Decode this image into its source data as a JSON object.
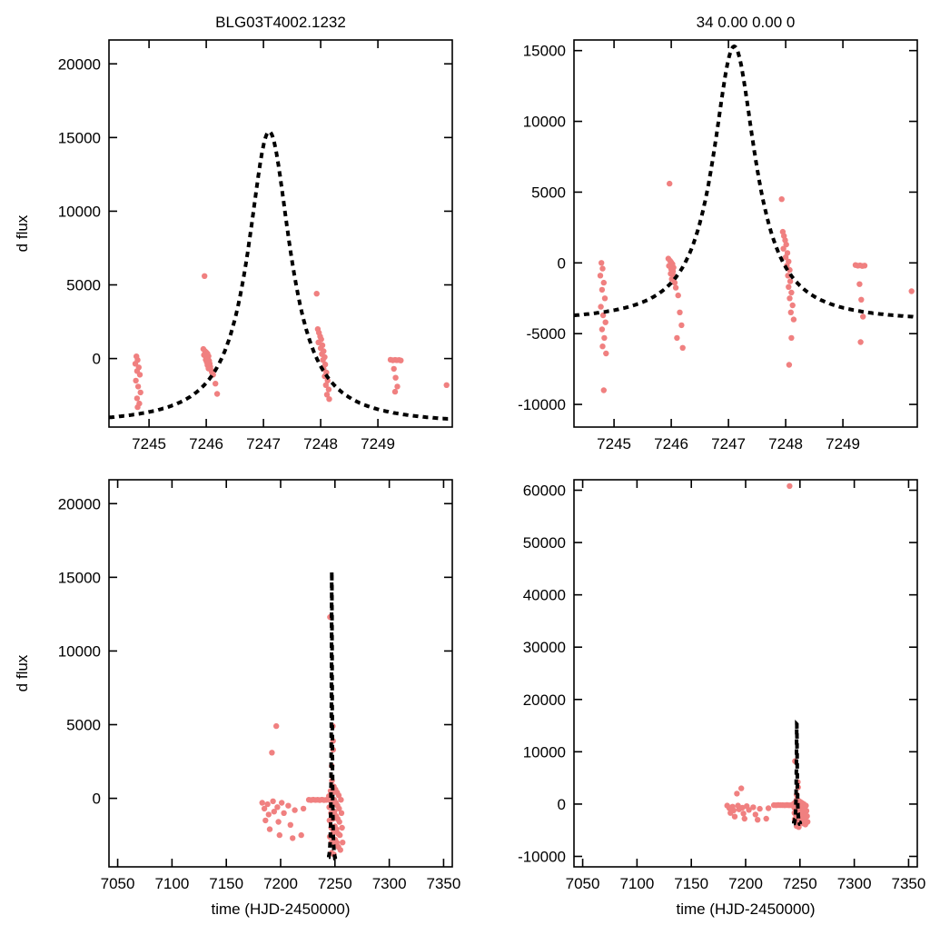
{
  "figure": {
    "background": "#ffffff",
    "point_color": "#f08080",
    "curve_color": "#000000",
    "frame_color": "#000000"
  },
  "chart_data": [
    {
      "id": "top-left",
      "type": "scatter",
      "title": "BLG03T4002.1232",
      "xlabel": "",
      "ylabel": "d flux",
      "xlim": [
        7244.3,
        7250.3
      ],
      "ylim": [
        -4650,
        21620
      ],
      "xticks": [
        7245,
        7246,
        7247,
        7248,
        7249
      ],
      "yticks": [
        0,
        5000,
        10000,
        15000,
        20000
      ],
      "grid": false,
      "model": {
        "shape": "lorentzian",
        "t0": 7247.1,
        "hwhm": 0.45,
        "peak": 15400,
        "base": -4500,
        "xmin": 7244.3,
        "xmax": 7250.3
      },
      "points": [
        [
          7244.78,
          150
        ],
        [
          7244.8,
          -100
        ],
        [
          7244.76,
          -350
        ],
        [
          7244.82,
          -600
        ],
        [
          7244.79,
          -850
        ],
        [
          7244.84,
          -1100
        ],
        [
          7244.77,
          -1500
        ],
        [
          7244.81,
          -1900
        ],
        [
          7244.85,
          -2300
        ],
        [
          7244.79,
          -2700
        ],
        [
          7244.83,
          -3050
        ],
        [
          7244.8,
          -3300
        ],
        [
          7245.97,
          5600
        ],
        [
          7245.95,
          650
        ],
        [
          7245.98,
          500
        ],
        [
          7246.0,
          420
        ],
        [
          7246.02,
          330
        ],
        [
          7245.96,
          240
        ],
        [
          7246.04,
          160
        ],
        [
          7246.0,
          80
        ],
        [
          7246.03,
          0
        ],
        [
          7245.99,
          -80
        ],
        [
          7246.05,
          -160
        ],
        [
          7246.01,
          -250
        ],
        [
          7246.06,
          -350
        ],
        [
          7246.02,
          -450
        ],
        [
          7246.07,
          -560
        ],
        [
          7246.04,
          -680
        ],
        [
          7246.09,
          -820
        ],
        [
          7246.1,
          -950
        ],
        [
          7246.12,
          -1100
        ],
        [
          7246.16,
          -1700
        ],
        [
          7246.19,
          -2400
        ],
        [
          7247.93,
          4400
        ],
        [
          7247.95,
          2000
        ],
        [
          7247.97,
          1750
        ],
        [
          7247.99,
          1500
        ],
        [
          7248.01,
          1300
        ],
        [
          7247.96,
          1100
        ],
        [
          7248.03,
          900
        ],
        [
          7248.0,
          700
        ],
        [
          7248.05,
          500
        ],
        [
          7248.02,
          300
        ],
        [
          7248.07,
          100
        ],
        [
          7248.04,
          -100
        ],
        [
          7248.08,
          -400
        ],
        [
          7248.05,
          -700
        ],
        [
          7248.1,
          -950
        ],
        [
          7248.07,
          -1200
        ],
        [
          7248.12,
          -1500
        ],
        [
          7248.09,
          -1800
        ],
        [
          7248.14,
          -2100
        ],
        [
          7248.11,
          -2450
        ],
        [
          7248.15,
          -2750
        ],
        [
          7249.22,
          -80
        ],
        [
          7249.26,
          -120
        ],
        [
          7249.3,
          -90
        ],
        [
          7249.33,
          -110
        ],
        [
          7249.37,
          -100
        ],
        [
          7249.4,
          -130
        ],
        [
          7249.28,
          -700
        ],
        [
          7249.31,
          -1300
        ],
        [
          7249.34,
          -1900
        ],
        [
          7249.3,
          -2250
        ],
        [
          7250.2,
          -1800
        ]
      ]
    },
    {
      "id": "top-right",
      "type": "scatter",
      "title": "34  0.00  0.00  0",
      "xlabel": "",
      "ylabel": "",
      "xlim": [
        7244.3,
        7250.3
      ],
      "ylim": [
        -11600,
        15750
      ],
      "xticks": [
        7245,
        7246,
        7247,
        7248,
        7249
      ],
      "yticks": [
        -10000,
        -5000,
        0,
        5000,
        10000,
        15000
      ],
      "grid": false,
      "model": {
        "shape": "lorentzian",
        "t0": 7247.1,
        "hwhm": 0.45,
        "peak": 15300,
        "base": -4200,
        "xmin": 7244.3,
        "xmax": 7250.3
      },
      "points": [
        [
          7244.78,
          0
        ],
        [
          7244.8,
          -400
        ],
        [
          7244.76,
          -900
        ],
        [
          7244.82,
          -1400
        ],
        [
          7244.79,
          -1900
        ],
        [
          7244.84,
          -2500
        ],
        [
          7244.77,
          -3100
        ],
        [
          7244.81,
          -3700
        ],
        [
          7244.85,
          -4200
        ],
        [
          7244.79,
          -4700
        ],
        [
          7244.83,
          -5300
        ],
        [
          7244.8,
          -5900
        ],
        [
          7244.86,
          -6400
        ],
        [
          7244.82,
          -9000
        ],
        [
          7245.97,
          5600
        ],
        [
          7245.95,
          300
        ],
        [
          7245.98,
          150
        ],
        [
          7246.0,
          30
        ],
        [
          7246.02,
          -90
        ],
        [
          7245.96,
          -210
        ],
        [
          7246.04,
          -330
        ],
        [
          7246.0,
          -460
        ],
        [
          7246.03,
          -600
        ],
        [
          7245.99,
          -760
        ],
        [
          7246.05,
          -950
        ],
        [
          7246.01,
          -1150
        ],
        [
          7246.06,
          -1400
        ],
        [
          7246.08,
          -1750
        ],
        [
          7246.12,
          -2300
        ],
        [
          7246.15,
          -3500
        ],
        [
          7246.18,
          -4400
        ],
        [
          7246.1,
          -5300
        ],
        [
          7246.2,
          -6000
        ],
        [
          7247.93,
          4500
        ],
        [
          7247.95,
          2200
        ],
        [
          7247.97,
          1900
        ],
        [
          7247.99,
          1600
        ],
        [
          7248.01,
          1300
        ],
        [
          7247.96,
          1000
        ],
        [
          7248.03,
          700
        ],
        [
          7248.0,
          400
        ],
        [
          7248.05,
          100
        ],
        [
          7248.02,
          -200
        ],
        [
          7248.07,
          -500
        ],
        [
          7248.04,
          -900
        ],
        [
          7248.08,
          -1300
        ],
        [
          7248.05,
          -1700
        ],
        [
          7248.1,
          -2100
        ],
        [
          7248.07,
          -2500
        ],
        [
          7248.12,
          -3000
        ],
        [
          7248.09,
          -3500
        ],
        [
          7248.14,
          -4000
        ],
        [
          7248.1,
          -5300
        ],
        [
          7248.06,
          -7200
        ],
        [
          7249.22,
          -150
        ],
        [
          7249.26,
          -200
        ],
        [
          7249.3,
          -180
        ],
        [
          7249.34,
          -220
        ],
        [
          7249.38,
          -190
        ],
        [
          7249.29,
          -1500
        ],
        [
          7249.32,
          -2600
        ],
        [
          7249.35,
          -3800
        ],
        [
          7249.31,
          -5600
        ],
        [
          7250.2,
          -2000
        ]
      ]
    },
    {
      "id": "bottom-left",
      "type": "scatter",
      "title": "",
      "xlabel": "time (HJD-2450000)",
      "ylabel": "d flux",
      "xlim": [
        7042,
        7358
      ],
      "ylim": [
        -4650,
        21620
      ],
      "xticks": [
        7050,
        7100,
        7150,
        7200,
        7250,
        7300,
        7350
      ],
      "yticks": [
        0,
        5000,
        10000,
        15000,
        20000
      ],
      "grid": false,
      "model": {
        "shape": "lorentzian",
        "t0": 7247.1,
        "hwhm": 0.45,
        "peak": 15400,
        "base": -4500,
        "xmin": 7244.3,
        "xmax": 7250.3
      },
      "points": [
        [
          7183,
          -300
        ],
        [
          7185,
          -700
        ],
        [
          7186,
          -1500
        ],
        [
          7188,
          -400
        ],
        [
          7189,
          -1100
        ],
        [
          7190,
          -2100
        ],
        [
          7192,
          3100
        ],
        [
          7193,
          -200
        ],
        [
          7194,
          -900
        ],
        [
          7196,
          4900
        ],
        [
          7197,
          -600
        ],
        [
          7198,
          -1600
        ],
        [
          7199,
          -2500
        ],
        [
          7201,
          -300
        ],
        [
          7203,
          -1000
        ],
        [
          7207,
          -500
        ],
        [
          7209,
          -1800
        ],
        [
          7211,
          -2700
        ],
        [
          7213,
          -800
        ],
        [
          7219,
          -2500
        ],
        [
          7221,
          -700
        ],
        [
          7226,
          -100
        ],
        [
          7228,
          -120
        ],
        [
          7230,
          -90
        ],
        [
          7232,
          -110
        ],
        [
          7234,
          -100
        ],
        [
          7236,
          -120
        ],
        [
          7238,
          -95
        ],
        [
          7240,
          -115
        ],
        [
          7242,
          -105
        ],
        [
          7244.5,
          150
        ],
        [
          7244.8,
          -600
        ],
        [
          7245.0,
          -1500
        ],
        [
          7245.2,
          -2600
        ],
        [
          7245.5,
          12300
        ],
        [
          7246.0,
          500
        ],
        [
          7246.2,
          -200
        ],
        [
          7246.4,
          -1000
        ],
        [
          7246.6,
          -2000
        ],
        [
          7246.8,
          -3000
        ],
        [
          7246.9,
          -3700
        ],
        [
          7247.0,
          2200
        ],
        [
          7247.2,
          1200
        ],
        [
          7247.4,
          300
        ],
        [
          7247.6,
          -500
        ],
        [
          7247.8,
          -1400
        ],
        [
          7248.0,
          4900
        ],
        [
          7248.2,
          3900
        ],
        [
          7248.3,
          3300
        ],
        [
          7248.5,
          -2300
        ],
        [
          7248.7,
          -3200
        ],
        [
          7248.9,
          -3800
        ],
        [
          7249.0,
          800
        ],
        [
          7249.3,
          -100
        ],
        [
          7249.6,
          -900
        ],
        [
          7249.9,
          -1900
        ],
        [
          7250.2,
          -2800
        ],
        [
          7250.5,
          600
        ],
        [
          7250.8,
          -300
        ],
        [
          7251.1,
          -1200
        ],
        [
          7251.4,
          -2100
        ],
        [
          7251.7,
          -3000
        ],
        [
          7252.0,
          400
        ],
        [
          7252.3,
          -500
        ],
        [
          7252.6,
          -1400
        ],
        [
          7252.9,
          -2400
        ],
        [
          7253.2,
          -3300
        ],
        [
          7253.5,
          200
        ],
        [
          7253.8,
          -700
        ],
        [
          7254.1,
          -1600
        ],
        [
          7254.5,
          -2500
        ],
        [
          7255.0,
          -3500
        ],
        [
          7255.5,
          -100
        ],
        [
          7256.0,
          -1000
        ],
        [
          7256.5,
          -2000
        ],
        [
          7257.0,
          -3000
        ]
      ]
    },
    {
      "id": "bottom-right",
      "type": "scatter",
      "title": "",
      "xlabel": "time (HJD-2450000)",
      "ylabel": "",
      "xlim": [
        7042,
        7358
      ],
      "ylim": [
        -12000,
        62000
      ],
      "xticks": [
        7050,
        7100,
        7150,
        7200,
        7250,
        7300,
        7350
      ],
      "yticks": [
        -10000,
        0,
        10000,
        20000,
        30000,
        40000,
        50000,
        60000
      ],
      "grid": false,
      "model": {
        "shape": "lorentzian",
        "t0": 7247.1,
        "hwhm": 0.45,
        "peak": 15300,
        "base": -4200,
        "xmin": 7244.3,
        "xmax": 7250.3
      },
      "points": [
        [
          7240.5,
          60800
        ],
        [
          7183,
          -300
        ],
        [
          7185,
          -800
        ],
        [
          7186,
          -1700
        ],
        [
          7188,
          -500
        ],
        [
          7189,
          -1200
        ],
        [
          7190,
          -2400
        ],
        [
          7192,
          2000
        ],
        [
          7193,
          -300
        ],
        [
          7194,
          -1000
        ],
        [
          7196,
          3000
        ],
        [
          7197,
          -700
        ],
        [
          7198,
          -1800
        ],
        [
          7199,
          -2800
        ],
        [
          7201,
          -400
        ],
        [
          7203,
          -1100
        ],
        [
          7207,
          -600
        ],
        [
          7209,
          -2000
        ],
        [
          7211,
          -3000
        ],
        [
          7213,
          -900
        ],
        [
          7219,
          -2800
        ],
        [
          7221,
          -800
        ],
        [
          7226,
          -200
        ],
        [
          7228,
          -230
        ],
        [
          7230,
          -190
        ],
        [
          7232,
          -210
        ],
        [
          7234,
          -200
        ],
        [
          7236,
          -220
        ],
        [
          7238,
          -195
        ],
        [
          7240,
          -215
        ],
        [
          7242,
          -205
        ],
        [
          7244.5,
          100
        ],
        [
          7244.8,
          -700
        ],
        [
          7245.0,
          -1700
        ],
        [
          7245.2,
          -2900
        ],
        [
          7245.5,
          8200
        ],
        [
          7246.0,
          400
        ],
        [
          7246.2,
          -300
        ],
        [
          7246.4,
          -1200
        ],
        [
          7246.6,
          -2200
        ],
        [
          7246.8,
          -3300
        ],
        [
          7246.9,
          -4200
        ],
        [
          7247.0,
          1800
        ],
        [
          7247.2,
          900
        ],
        [
          7247.4,
          100
        ],
        [
          7247.6,
          -800
        ],
        [
          7247.8,
          -1700
        ],
        [
          7248.0,
          4200
        ],
        [
          7248.2,
          3200
        ],
        [
          7248.5,
          -2600
        ],
        [
          7248.7,
          -3600
        ],
        [
          7248.9,
          -4400
        ],
        [
          7249.0,
          600
        ],
        [
          7249.3,
          -200
        ],
        [
          7249.6,
          -1100
        ],
        [
          7249.9,
          -2100
        ],
        [
          7250.2,
          -3100
        ],
        [
          7250.5,
          400
        ],
        [
          7250.8,
          -500
        ],
        [
          7251.1,
          -1400
        ],
        [
          7251.4,
          -2400
        ],
        [
          7251.7,
          -3400
        ],
        [
          7252.0,
          200
        ],
        [
          7252.3,
          -700
        ],
        [
          7252.6,
          -1600
        ],
        [
          7252.9,
          -2700
        ],
        [
          7253.2,
          -3700
        ],
        [
          7253.5,
          0
        ],
        [
          7253.8,
          -900
        ],
        [
          7254.1,
          -1900
        ],
        [
          7254.5,
          -2900
        ],
        [
          7255.0,
          -3900
        ],
        [
          7255.5,
          -300
        ],
        [
          7256.0,
          -1300
        ],
        [
          7256.5,
          -2300
        ],
        [
          7257.0,
          -3400
        ]
      ]
    }
  ]
}
